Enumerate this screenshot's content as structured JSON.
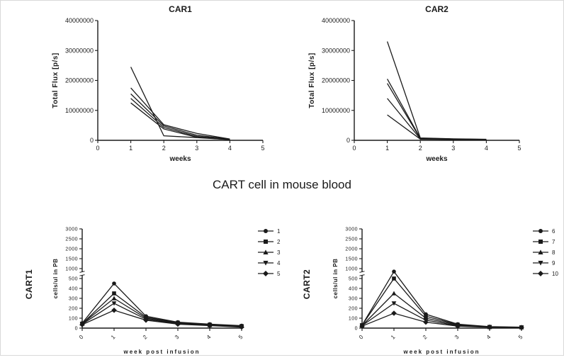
{
  "figure_title": "CART cell in mouse blood",
  "chart_data": [
    {
      "id": "car1",
      "type": "line",
      "title": "CAR1",
      "xlabel": "weeks",
      "ylabel": "Total Flux [p/s]",
      "xlim": [
        0,
        5
      ],
      "xticks": [
        0,
        1,
        2,
        3,
        4,
        5
      ],
      "ylim": [
        0,
        40000000
      ],
      "yticks": [
        0,
        10000000,
        20000000,
        30000000,
        40000000
      ],
      "yscale": "linear",
      "legend_position": "none",
      "grid": false,
      "line_color": "#1a1a1a",
      "series": [
        {
          "marker": "none",
          "x": [
            1,
            2,
            3,
            4
          ],
          "y": [
            24500000,
            1500000,
            900000,
            250000
          ]
        },
        {
          "marker": "none",
          "x": [
            1,
            2,
            3,
            4
          ],
          "y": [
            17500000,
            5200000,
            2300000,
            450000
          ]
        },
        {
          "marker": "none",
          "x": [
            1,
            2,
            3,
            4
          ],
          "y": [
            15500000,
            4800000,
            1700000,
            350000
          ]
        },
        {
          "marker": "none",
          "x": [
            1,
            2,
            3,
            4
          ],
          "y": [
            14000000,
            4300000,
            1300000,
            300000
          ]
        },
        {
          "marker": "none",
          "x": [
            1,
            2,
            3,
            4
          ],
          "y": [
            12500000,
            3800000,
            1000000,
            200000
          ]
        }
      ]
    },
    {
      "id": "car2",
      "type": "line",
      "title": "CAR2",
      "xlabel": "weeks",
      "ylabel": "Total Flux [p/s]",
      "xlim": [
        0,
        5
      ],
      "xticks": [
        0,
        1,
        2,
        3,
        4,
        5
      ],
      "ylim": [
        0,
        40000000
      ],
      "yticks": [
        0,
        10000000,
        20000000,
        30000000,
        40000000
      ],
      "yscale": "linear",
      "legend_position": "none",
      "grid": false,
      "line_color": "#1a1a1a",
      "series": [
        {
          "marker": "none",
          "x": [
            1,
            2,
            3,
            4
          ],
          "y": [
            33000000,
            800000,
            500000,
            350000
          ]
        },
        {
          "marker": "none",
          "x": [
            1,
            2,
            3,
            4
          ],
          "y": [
            20500000,
            700000,
            450000,
            300000
          ]
        },
        {
          "marker": "none",
          "x": [
            1,
            2,
            3,
            4
          ],
          "y": [
            19000000,
            600000,
            400000,
            250000
          ]
        },
        {
          "marker": "none",
          "x": [
            1,
            2,
            3,
            4
          ],
          "y": [
            14000000,
            500000,
            300000,
            200000
          ]
        },
        {
          "marker": "none",
          "x": [
            1,
            2,
            3,
            4
          ],
          "y": [
            8500000,
            400000,
            250000,
            150000
          ]
        }
      ]
    },
    {
      "id": "cart1",
      "type": "line",
      "title": "",
      "side_label": "CART1",
      "xlabel": "week post infusion",
      "ylabel": "cells/ul in PB",
      "xlim": [
        0,
        5
      ],
      "xticks": [
        0,
        1,
        2,
        3,
        4,
        5
      ],
      "yticks": [
        0,
        100,
        200,
        300,
        400,
        500,
        1000,
        1500,
        2000,
        2500,
        3000
      ],
      "yscale": "segmented",
      "ybreak_after": 500,
      "legend_position": "right",
      "grid": false,
      "line_color": "#1a1a1a",
      "series": [
        {
          "name": "1",
          "marker": "circle",
          "x": [
            0,
            1,
            2,
            3,
            4,
            5
          ],
          "y": [
            50,
            450,
            120,
            60,
            40,
            25
          ]
        },
        {
          "name": "2",
          "marker": "square",
          "x": [
            0,
            1,
            2,
            3,
            4,
            5
          ],
          "y": [
            45,
            350,
            110,
            55,
            35,
            20
          ]
        },
        {
          "name": "3",
          "marker": "triangle-up",
          "x": [
            0,
            1,
            2,
            3,
            4,
            5
          ],
          "y": [
            45,
            300,
            100,
            50,
            30,
            20
          ]
        },
        {
          "name": "4",
          "marker": "triangle-down",
          "x": [
            0,
            1,
            2,
            3,
            4,
            5
          ],
          "y": [
            40,
            250,
            90,
            45,
            28,
            15
          ]
        },
        {
          "name": "5",
          "marker": "diamond",
          "x": [
            0,
            1,
            2,
            3,
            4,
            5
          ],
          "y": [
            35,
            180,
            80,
            40,
            25,
            10
          ]
        }
      ]
    },
    {
      "id": "cart2",
      "type": "line",
      "title": "",
      "side_label": "CART2",
      "xlabel": "week post infusion",
      "ylabel": "cells/ul in PB",
      "xlim": [
        0,
        5
      ],
      "xticks": [
        0,
        1,
        2,
        3,
        4,
        5
      ],
      "yticks": [
        0,
        100,
        200,
        300,
        400,
        500,
        1000,
        1500,
        2000,
        2500,
        3000
      ],
      "yscale": "segmented",
      "ybreak_after": 500,
      "legend_position": "right",
      "grid": false,
      "line_color": "#1a1a1a",
      "series": [
        {
          "name": "6",
          "marker": "circle",
          "x": [
            0,
            1,
            2,
            3,
            4,
            5
          ],
          "y": [
            30,
            850,
            140,
            40,
            15,
            10
          ]
        },
        {
          "name": "7",
          "marker": "square",
          "x": [
            0,
            1,
            2,
            3,
            4,
            5
          ],
          "y": [
            30,
            500,
            120,
            35,
            12,
            8
          ]
        },
        {
          "name": "8",
          "marker": "triangle-up",
          "x": [
            0,
            1,
            2,
            3,
            4,
            5
          ],
          "y": [
            25,
            350,
            100,
            30,
            10,
            8
          ]
        },
        {
          "name": "9",
          "marker": "triangle-down",
          "x": [
            0,
            1,
            2,
            3,
            4,
            5
          ],
          "y": [
            25,
            250,
            80,
            25,
            10,
            5
          ]
        },
        {
          "name": "10",
          "marker": "diamond",
          "x": [
            0,
            1,
            2,
            3,
            4,
            5
          ],
          "y": [
            20,
            150,
            60,
            20,
            8,
            5
          ]
        }
      ]
    }
  ]
}
